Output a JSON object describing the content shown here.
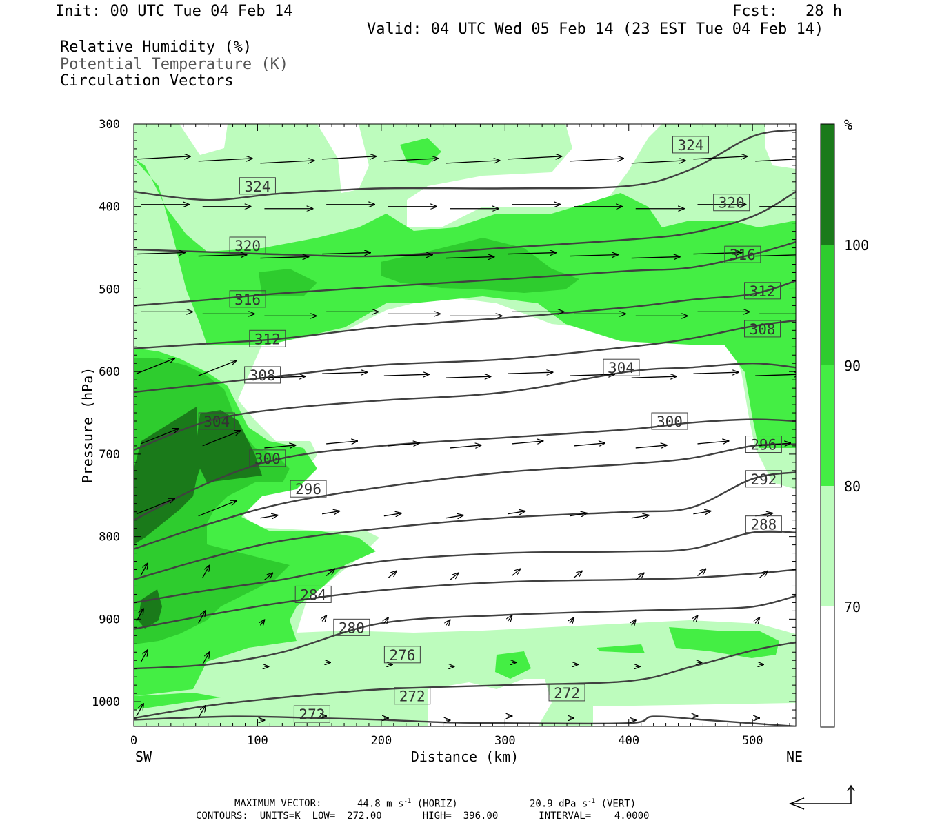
{
  "header": {
    "init": "Init: 00 UTC Tue 04 Feb 14",
    "fcst": "Fcst:   28 h",
    "valid": "Valid: 04 UTC Wed 05 Feb 14 (23 EST Tue 04 Feb 14)"
  },
  "legend_lines": [
    {
      "text": "Relative Humidity (%)",
      "color": "#000000"
    },
    {
      "text": "Potential Temperature (K)",
      "color": "#777777"
    },
    {
      "text": "Circulation Vectors",
      "color": "#000000"
    }
  ],
  "colorbar": {
    "unit": "%",
    "levels": [
      "100",
      "90",
      "80",
      "70"
    ],
    "colors": [
      "#1a7a1a",
      "#2ecc2e",
      "#44ee44",
      "#bdfcbd",
      "#ffffff"
    ]
  },
  "footer": {
    "max_vector_label": "MAXIMUM VECTOR:",
    "max_vector_horiz": "44.8 m s",
    "horiz_tag": "(HORIZ)",
    "max_vector_vert": "20.9 dPa s",
    "vert_tag": "(VERT)",
    "contours": "CONTOURS:  UNITS=K  LOW=  272.00       HIGH=  396.00       INTERVAL=    4.0000"
  },
  "chart_data": {
    "type": "heatmap",
    "xlabel": "Distance (km)",
    "ylabel": "Pressure (hPa)",
    "xlim": [
      0,
      535
    ],
    "ylim": [
      1030,
      300
    ],
    "x_ticks": [
      0,
      100,
      200,
      300,
      400,
      500
    ],
    "y_ticks": [
      300,
      400,
      500,
      600,
      700,
      800,
      900,
      1000
    ],
    "x_end_labels": {
      "left": "SW",
      "right": "NE"
    },
    "rh_fill_levels": [
      70,
      80,
      90,
      100
    ],
    "theta_contours": [
      {
        "label": "324",
        "points": [
          [
            0,
            382
          ],
          [
            60,
            392
          ],
          [
            120,
            384
          ],
          [
            200,
            378
          ],
          [
            300,
            378
          ],
          [
            400,
            375
          ],
          [
            450,
            355
          ],
          [
            500,
            315
          ],
          [
            535,
            307
          ]
        ],
        "labels": [
          [
            100,
            375
          ],
          [
            450,
            325
          ]
        ]
      },
      {
        "label": "320",
        "points": [
          [
            0,
            452
          ],
          [
            60,
            455
          ],
          [
            120,
            458
          ],
          [
            200,
            460
          ],
          [
            300,
            450
          ],
          [
            400,
            440
          ],
          [
            450,
            432
          ],
          [
            500,
            412
          ],
          [
            535,
            382
          ]
        ],
        "labels": [
          [
            92,
            447
          ],
          [
            483,
            395
          ]
        ]
      },
      {
        "label": "316",
        "points": [
          [
            0,
            520
          ],
          [
            60,
            513
          ],
          [
            120,
            505
          ],
          [
            200,
            497
          ],
          [
            300,
            488
          ],
          [
            400,
            478
          ],
          [
            450,
            474
          ],
          [
            500,
            458
          ],
          [
            535,
            443
          ]
        ],
        "labels": [
          [
            92,
            512
          ],
          [
            492,
            458
          ]
        ]
      },
      {
        "label": "312",
        "points": [
          [
            0,
            572
          ],
          [
            60,
            566
          ],
          [
            120,
            560
          ],
          [
            200,
            546
          ],
          [
            300,
            535
          ],
          [
            400,
            522
          ],
          [
            450,
            513
          ],
          [
            500,
            506
          ],
          [
            535,
            490
          ]
        ],
        "labels": [
          [
            108,
            560
          ],
          [
            508,
            502
          ]
        ]
      },
      {
        "label": "308",
        "points": [
          [
            0,
            625
          ],
          [
            60,
            615
          ],
          [
            120,
            605
          ],
          [
            200,
            592
          ],
          [
            300,
            585
          ],
          [
            400,
            570
          ],
          [
            450,
            560
          ],
          [
            500,
            545
          ],
          [
            535,
            538
          ]
        ],
        "labels": [
          [
            104,
            604
          ],
          [
            508,
            548
          ]
        ]
      },
      {
        "label": "304",
        "points": [
          [
            0,
            695
          ],
          [
            60,
            660
          ],
          [
            120,
            645
          ],
          [
            200,
            635
          ],
          [
            300,
            625
          ],
          [
            400,
            600
          ],
          [
            450,
            595
          ],
          [
            500,
            590
          ],
          [
            535,
            595
          ]
        ],
        "labels": [
          [
            67,
            660
          ],
          [
            394,
            595
          ]
        ]
      },
      {
        "label": "300",
        "points": [
          [
            0,
            780
          ],
          [
            60,
            735
          ],
          [
            120,
            705
          ],
          [
            200,
            690
          ],
          [
            300,
            680
          ],
          [
            400,
            670
          ],
          [
            450,
            662
          ],
          [
            500,
            658
          ],
          [
            535,
            660
          ]
        ],
        "labels": [
          [
            108,
            705
          ],
          [
            433,
            660
          ]
        ]
      },
      {
        "label": "296",
        "points": [
          [
            0,
            815
          ],
          [
            60,
            785
          ],
          [
            120,
            760
          ],
          [
            200,
            740
          ],
          [
            300,
            722
          ],
          [
            400,
            712
          ],
          [
            450,
            705
          ],
          [
            500,
            690
          ],
          [
            535,
            688
          ]
        ],
        "labels": [
          [
            141,
            742
          ],
          [
            509,
            688
          ]
        ]
      },
      {
        "label": "292",
        "points": [
          [
            0,
            852
          ],
          [
            60,
            826
          ],
          [
            120,
            805
          ],
          [
            200,
            790
          ],
          [
            300,
            777
          ],
          [
            400,
            770
          ],
          [
            450,
            765
          ],
          [
            500,
            730
          ],
          [
            535,
            722
          ]
        ],
        "labels": [
          [
            140,
            0
          ],
          [
            509,
            730
          ]
        ]
      },
      {
        "label": "288",
        "points": [
          [
            0,
            880
          ],
          [
            60,
            865
          ],
          [
            120,
            852
          ],
          [
            200,
            830
          ],
          [
            300,
            820
          ],
          [
            400,
            818
          ],
          [
            450,
            815
          ],
          [
            500,
            795
          ],
          [
            535,
            795
          ]
        ],
        "labels": [
          [
            0,
            0
          ],
          [
            509,
            785
          ]
        ]
      },
      {
        "label": "284",
        "points": [
          [
            0,
            912
          ],
          [
            60,
            895
          ],
          [
            120,
            880
          ],
          [
            200,
            865
          ],
          [
            300,
            855
          ],
          [
            400,
            852
          ],
          [
            450,
            850
          ],
          [
            500,
            845
          ],
          [
            535,
            840
          ]
        ],
        "labels": [
          [
            145,
            870
          ],
          [
            0,
            0
          ]
        ]
      },
      {
        "label": "280",
        "points": [
          [
            0,
            960
          ],
          [
            60,
            955
          ],
          [
            120,
            940
          ],
          [
            200,
            905
          ],
          [
            300,
            895
          ],
          [
            400,
            890
          ],
          [
            450,
            888
          ],
          [
            500,
            885
          ],
          [
            535,
            872
          ]
        ],
        "labels": [
          [
            176,
            910
          ],
          [
            0,
            0
          ]
        ]
      },
      {
        "label": "276",
        "points": [
          [
            0,
            1020
          ],
          [
            60,
            1005
          ],
          [
            120,
            995
          ],
          [
            200,
            985
          ],
          [
            300,
            980
          ],
          [
            400,
            975
          ],
          [
            450,
            958
          ],
          [
            500,
            938
          ],
          [
            535,
            928
          ]
        ],
        "labels": [
          [
            217,
            943
          ],
          [
            0,
            0
          ]
        ]
      },
      {
        "label": "272",
        "points": [
          [
            0,
            1022
          ],
          [
            80,
            1018
          ],
          [
            150,
            1020
          ],
          [
            200,
            1022
          ],
          [
            250,
            1025
          ],
          [
            300,
            1026
          ],
          [
            400,
            1026
          ],
          [
            420,
            1018
          ],
          [
            460,
            1022
          ],
          [
            535,
            1030
          ]
        ],
        "labels": [
          [
            144,
            1015
          ],
          [
            225,
            993
          ],
          [
            350,
            989
          ]
        ]
      }
    ],
    "rh_regions_note": "moist layer 400-560 hPa, dry tongue 560-900 hPa east of 100 km, saturated region near SW edge 640-920 hPa"
  }
}
